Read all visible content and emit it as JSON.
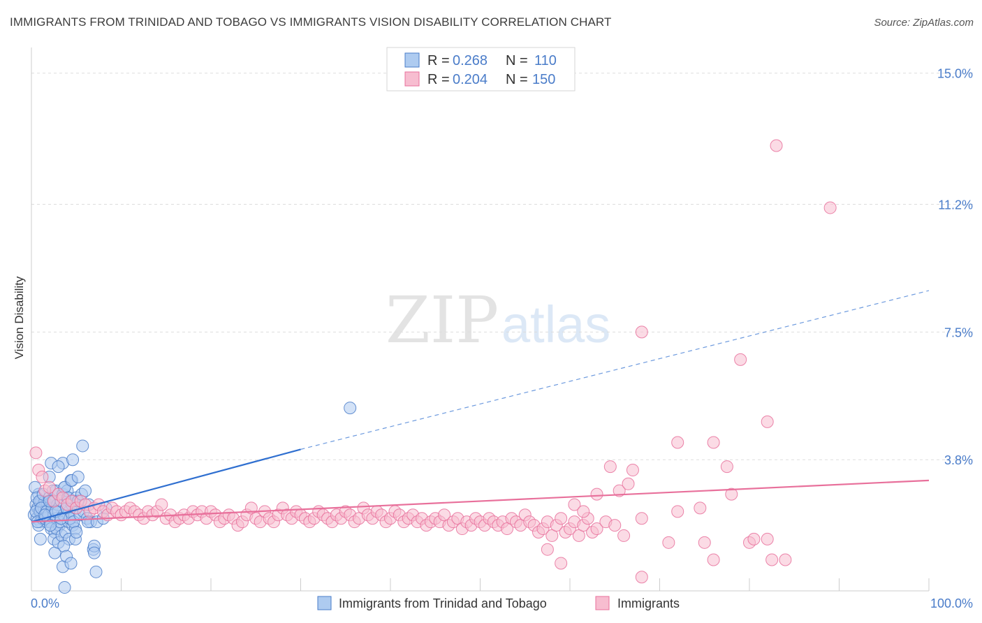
{
  "header": {
    "title": "IMMIGRANTS FROM TRINIDAD AND TOBAGO VS IMMIGRANTS VISION DISABILITY CORRELATION CHART",
    "source": "Source: ZipAtlas.com"
  },
  "watermark": {
    "zip": "ZIP",
    "atlas": "atlas"
  },
  "colors": {
    "blue": "#4a7cc9",
    "blue_fill": "#aecbf0",
    "blue_line": "#2f6fd0",
    "pink": "#e8709b",
    "pink_fill": "#f7bdd0",
    "pink_line": "#e8709b",
    "grid": "#dddddd"
  },
  "legend": {
    "rows": [
      {
        "r_label": "R = ",
        "r_value": "0.268",
        "n_label": "N = ",
        "n_value": "110"
      },
      {
        "r_label": "R = ",
        "r_value": "0.204",
        "n_label": "N = ",
        "n_value": "150"
      }
    ]
  },
  "chart_data": {
    "type": "scatter",
    "xlabel": "",
    "ylabel": "Vision Disability",
    "xlim": [
      0,
      100
    ],
    "ylim": [
      0,
      15.5
    ],
    "x_tick_labels": [
      "0.0%",
      "100.0%"
    ],
    "y_ticks": [
      {
        "value": 3.8,
        "label": "3.8%"
      },
      {
        "value": 7.5,
        "label": "7.5%"
      },
      {
        "value": 11.2,
        "label": "11.2%"
      },
      {
        "value": 15.0,
        "label": "15.0%"
      }
    ],
    "grid": "horizontal dashed",
    "series": [
      {
        "name": "Immigrants from Trinidad and Tobago",
        "color": "#4a7cc9",
        "trend": {
          "x": [
            0,
            30
          ],
          "y": [
            2.0,
            4.1
          ],
          "extended_to": [
            100,
            8.7
          ]
        },
        "points": [
          [
            0.3,
            2.2
          ],
          [
            0.5,
            2.5
          ],
          [
            0.6,
            2.1
          ],
          [
            0.7,
            2.4
          ],
          [
            0.8,
            2.8
          ],
          [
            0.9,
            2.3
          ],
          [
            1.0,
            2.0
          ],
          [
            1.1,
            2.6
          ],
          [
            1.2,
            2.2
          ],
          [
            1.3,
            2.5
          ],
          [
            0.4,
            3.0
          ],
          [
            0.6,
            2.7
          ],
          [
            0.8,
            1.9
          ],
          [
            1.0,
            2.3
          ],
          [
            1.2,
            2.1
          ],
          [
            1.4,
            2.4
          ],
          [
            1.5,
            2.6
          ],
          [
            1.6,
            2.2
          ],
          [
            1.7,
            2.0
          ],
          [
            1.8,
            2.5
          ],
          [
            0.5,
            2.3
          ],
          [
            0.7,
            2.0
          ],
          [
            0.9,
            2.6
          ],
          [
            1.1,
            2.4
          ],
          [
            1.3,
            2.8
          ],
          [
            1.5,
            2.1
          ],
          [
            1.7,
            2.3
          ],
          [
            1.9,
            2.2
          ],
          [
            2.0,
            2.7
          ],
          [
            2.1,
            2.0
          ],
          [
            2.2,
            1.8
          ],
          [
            2.3,
            2.4
          ],
          [
            2.4,
            2.6
          ],
          [
            2.5,
            2.2
          ],
          [
            2.6,
            1.7
          ],
          [
            2.7,
            2.9
          ],
          [
            2.8,
            2.1
          ],
          [
            2.9,
            2.5
          ],
          [
            3.0,
            2.3
          ],
          [
            3.1,
            1.9
          ],
          [
            2.0,
            3.3
          ],
          [
            2.2,
            3.7
          ],
          [
            2.4,
            2.9
          ],
          [
            2.5,
            1.5
          ],
          [
            2.6,
            1.1
          ],
          [
            2.8,
            1.8
          ],
          [
            3.0,
            1.4
          ],
          [
            3.2,
            2.0
          ],
          [
            3.3,
            2.6
          ],
          [
            3.4,
            1.6
          ],
          [
            3.5,
            2.8
          ],
          [
            3.6,
            2.2
          ],
          [
            3.7,
            3.0
          ],
          [
            3.8,
            1.7
          ],
          [
            3.9,
            2.4
          ],
          [
            4.0,
            2.7
          ],
          [
            4.1,
            2.0
          ],
          [
            4.2,
            1.5
          ],
          [
            4.3,
            2.1
          ],
          [
            4.4,
            3.2
          ],
          [
            3.5,
            0.7
          ],
          [
            3.7,
            0.1
          ],
          [
            4.0,
            2.9
          ],
          [
            4.2,
            2.3
          ],
          [
            4.5,
            2.5
          ],
          [
            4.6,
            1.9
          ],
          [
            4.7,
            2.6
          ],
          [
            4.8,
            2.2
          ],
          [
            4.9,
            1.8
          ],
          [
            5.0,
            2.4
          ],
          [
            3.5,
            3.7
          ],
          [
            3.7,
            3.0
          ],
          [
            3.9,
            2.4
          ],
          [
            4.1,
            2.7
          ],
          [
            4.3,
            2.1
          ],
          [
            4.5,
            3.2
          ],
          [
            4.7,
            2.0
          ],
          [
            5.0,
            2.7
          ],
          [
            5.2,
            2.6
          ],
          [
            5.4,
            2.2
          ],
          [
            5.6,
            2.8
          ],
          [
            5.8,
            2.3
          ],
          [
            6.0,
            2.9
          ],
          [
            6.2,
            2.1
          ],
          [
            6.4,
            2.5
          ],
          [
            6.6,
            2.0
          ],
          [
            1.5,
            2.2
          ],
          [
            2.1,
            1.9
          ],
          [
            2.7,
            2.3
          ],
          [
            3.3,
            2.1
          ],
          [
            3.6,
            1.3
          ],
          [
            3.9,
            1.0
          ],
          [
            4.4,
            0.8
          ],
          [
            4.9,
            1.5
          ],
          [
            5.2,
            3.3
          ],
          [
            5.7,
            4.2
          ],
          [
            6.3,
            2.0
          ],
          [
            6.9,
            1.2
          ],
          [
            7.2,
            0.55
          ],
          [
            4.6,
            3.8
          ],
          [
            7.0,
            1.3
          ],
          [
            7.3,
            2.0
          ],
          [
            8.0,
            2.1
          ],
          [
            8.3,
            2.4
          ],
          [
            7.0,
            1.1
          ],
          [
            5.0,
            1.7
          ],
          [
            3.0,
            3.6
          ],
          [
            2.0,
            2.6
          ],
          [
            1.0,
            1.5
          ],
          [
            35.5,
            5.3
          ]
        ]
      },
      {
        "name": "Immigrants",
        "color": "#e8709b",
        "trend": {
          "x": [
            0,
            100
          ],
          "y": [
            2.0,
            3.2
          ]
        },
        "points": [
          [
            0.5,
            4.0
          ],
          [
            0.8,
            3.5
          ],
          [
            1.2,
            3.3
          ],
          [
            1.5,
            2.9
          ],
          [
            2.0,
            3.0
          ],
          [
            2.5,
            2.6
          ],
          [
            3.0,
            2.8
          ],
          [
            3.5,
            2.7
          ],
          [
            4.0,
            2.5
          ],
          [
            4.5,
            2.6
          ],
          [
            5.0,
            2.4
          ],
          [
            5.5,
            2.6
          ],
          [
            6.0,
            2.5
          ],
          [
            6.5,
            2.3
          ],
          [
            7.0,
            2.4
          ],
          [
            7.5,
            2.5
          ],
          [
            8.0,
            2.3
          ],
          [
            8.5,
            2.2
          ],
          [
            9.0,
            2.4
          ],
          [
            9.5,
            2.3
          ],
          [
            10.0,
            2.2
          ],
          [
            10.5,
            2.3
          ],
          [
            11.0,
            2.4
          ],
          [
            11.5,
            2.3
          ],
          [
            12.0,
            2.2
          ],
          [
            12.5,
            2.1
          ],
          [
            13.0,
            2.3
          ],
          [
            13.5,
            2.2
          ],
          [
            14.0,
            2.3
          ],
          [
            14.5,
            2.5
          ],
          [
            15.0,
            2.1
          ],
          [
            15.5,
            2.2
          ],
          [
            16.0,
            2.0
          ],
          [
            16.5,
            2.1
          ],
          [
            17.0,
            2.2
          ],
          [
            17.5,
            2.1
          ],
          [
            18.0,
            2.3
          ],
          [
            18.5,
            2.2
          ],
          [
            19.0,
            2.3
          ],
          [
            19.5,
            2.1
          ],
          [
            20.0,
            2.3
          ],
          [
            20.5,
            2.2
          ],
          [
            21.0,
            2.0
          ],
          [
            21.5,
            2.1
          ],
          [
            22.0,
            2.2
          ],
          [
            22.5,
            2.1
          ],
          [
            23.0,
            1.9
          ],
          [
            23.5,
            2.0
          ],
          [
            24.0,
            2.2
          ],
          [
            24.5,
            2.4
          ],
          [
            25.0,
            2.1
          ],
          [
            25.5,
            2.0
          ],
          [
            26.0,
            2.3
          ],
          [
            26.5,
            2.1
          ],
          [
            27.0,
            2.0
          ],
          [
            27.5,
            2.2
          ],
          [
            28.0,
            2.4
          ],
          [
            28.5,
            2.2
          ],
          [
            29.0,
            2.1
          ],
          [
            29.5,
            2.3
          ],
          [
            30.0,
            2.2
          ],
          [
            30.5,
            2.1
          ],
          [
            31.0,
            2.0
          ],
          [
            31.5,
            2.1
          ],
          [
            32.0,
            2.3
          ],
          [
            32.5,
            2.2
          ],
          [
            33.0,
            2.1
          ],
          [
            33.5,
            2.0
          ],
          [
            34.0,
            2.2
          ],
          [
            34.5,
            2.1
          ],
          [
            35.0,
            2.3
          ],
          [
            35.5,
            2.2
          ],
          [
            36.0,
            2.0
          ],
          [
            36.5,
            2.1
          ],
          [
            37.0,
            2.4
          ],
          [
            37.5,
            2.2
          ],
          [
            38.0,
            2.1
          ],
          [
            38.5,
            2.3
          ],
          [
            39.0,
            2.2
          ],
          [
            39.5,
            2.0
          ],
          [
            40.0,
            2.1
          ],
          [
            40.5,
            2.3
          ],
          [
            41.0,
            2.2
          ],
          [
            41.5,
            2.0
          ],
          [
            42.0,
            2.1
          ],
          [
            42.5,
            2.2
          ],
          [
            43.0,
            2.0
          ],
          [
            43.5,
            2.1
          ],
          [
            44.0,
            1.9
          ],
          [
            44.5,
            2.0
          ],
          [
            45.0,
            2.1
          ],
          [
            45.5,
            2.0
          ],
          [
            46.0,
            2.2
          ],
          [
            46.5,
            1.9
          ],
          [
            47.0,
            2.0
          ],
          [
            47.5,
            2.1
          ],
          [
            48.0,
            1.8
          ],
          [
            48.5,
            2.0
          ],
          [
            49.0,
            1.9
          ],
          [
            49.5,
            2.1
          ],
          [
            50.0,
            2.0
          ],
          [
            50.5,
            1.9
          ],
          [
            51.0,
            2.1
          ],
          [
            51.5,
            2.0
          ],
          [
            52.0,
            1.9
          ],
          [
            52.5,
            2.0
          ],
          [
            53.0,
            1.8
          ],
          [
            53.5,
            2.1
          ],
          [
            54.0,
            2.0
          ],
          [
            54.5,
            1.9
          ],
          [
            55.0,
            2.2
          ],
          [
            55.5,
            2.0
          ],
          [
            56.0,
            1.9
          ],
          [
            56.5,
            1.7
          ],
          [
            57.0,
            1.8
          ],
          [
            57.5,
            2.0
          ],
          [
            58.0,
            1.6
          ],
          [
            58.5,
            1.9
          ],
          [
            59.0,
            2.1
          ],
          [
            59.5,
            1.7
          ],
          [
            60.0,
            1.8
          ],
          [
            60.5,
            2.0
          ],
          [
            61.0,
            1.6
          ],
          [
            61.5,
            1.9
          ],
          [
            62.0,
            2.1
          ],
          [
            62.5,
            1.7
          ],
          [
            63.0,
            1.8
          ],
          [
            64.0,
            2.0
          ],
          [
            65.0,
            1.9
          ],
          [
            66.0,
            1.6
          ],
          [
            57.5,
            1.2
          ],
          [
            59.0,
            0.8
          ],
          [
            60.5,
            2.5
          ],
          [
            61.5,
            2.3
          ],
          [
            63.0,
            2.8
          ],
          [
            64.5,
            3.6
          ],
          [
            65.5,
            2.9
          ],
          [
            66.5,
            3.1
          ],
          [
            67.0,
            3.5
          ],
          [
            68.0,
            2.1
          ],
          [
            72.0,
            2.3
          ],
          [
            75.0,
            1.4
          ],
          [
            80.0,
            1.4
          ],
          [
            82.0,
            1.5
          ],
          [
            68.0,
            7.5
          ],
          [
            79.0,
            6.7
          ],
          [
            72.0,
            4.3
          ],
          [
            76.0,
            4.3
          ],
          [
            77.5,
            3.6
          ],
          [
            82.0,
            4.9
          ],
          [
            83.0,
            12.9
          ],
          [
            89.0,
            11.1
          ],
          [
            68.0,
            0.4
          ],
          [
            71.0,
            1.4
          ],
          [
            76.0,
            0.9
          ],
          [
            78.0,
            2.8
          ],
          [
            80.5,
            1.5
          ],
          [
            82.5,
            0.9
          ],
          [
            74.5,
            2.4
          ],
          [
            84.0,
            0.9
          ]
        ]
      }
    ]
  },
  "bottom_legend": [
    {
      "label": "Immigrants from Trinidad and Tobago"
    },
    {
      "label": "Immigrants"
    }
  ]
}
